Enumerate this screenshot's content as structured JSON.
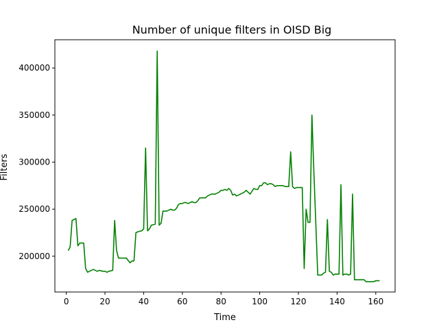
{
  "chart_data": {
    "type": "line",
    "title": "Number of unique filters in OISD Big",
    "xlabel": "Time",
    "ylabel": "Filters",
    "xlim": [
      -5.9,
      170
    ],
    "ylim": [
      162000,
      430000
    ],
    "xticks": [
      0,
      20,
      40,
      60,
      80,
      100,
      120,
      140,
      160
    ],
    "xtick_labels": [
      "0",
      "20",
      "40",
      "60",
      "80",
      "100",
      "120",
      "140",
      "160"
    ],
    "yticks": [
      200000,
      250000,
      300000,
      350000,
      400000
    ],
    "ytick_labels": [
      "200000",
      "250000",
      "300000",
      "350000",
      "400000"
    ],
    "grid": false,
    "series": [
      {
        "color": "#008000",
        "x": [
          1,
          2,
          3,
          5,
          6,
          7,
          9,
          10,
          11,
          13,
          14,
          15,
          16,
          17,
          19,
          20,
          21,
          22,
          24,
          25,
          26,
          27,
          30,
          31,
          33,
          34,
          35,
          36,
          37,
          39,
          40,
          41,
          42,
          43,
          44,
          46,
          47,
          48,
          49,
          50,
          51,
          52,
          53,
          54,
          55,
          56,
          57,
          58,
          59,
          60,
          61,
          62,
          63,
          64,
          65,
          66,
          67,
          68,
          69,
          70,
          71,
          72,
          73,
          74,
          75,
          76,
          77,
          78,
          79,
          80,
          81,
          82,
          83,
          84,
          85,
          86,
          87,
          88,
          89,
          90,
          91,
          92,
          93,
          94,
          95,
          96,
          97,
          98,
          99,
          100,
          101,
          102,
          103,
          104,
          105,
          106,
          107,
          108,
          109,
          110,
          111,
          112,
          113,
          114,
          115,
          116,
          117,
          118,
          119,
          120,
          121,
          122,
          123,
          124,
          125,
          126,
          127,
          128,
          130,
          131,
          132,
          133,
          134,
          135,
          136,
          137,
          138,
          139,
          140,
          141,
          142,
          143,
          144,
          145,
          146,
          147,
          148,
          149,
          150,
          151,
          152,
          153,
          154,
          155,
          156,
          157,
          158,
          159,
          160,
          161,
          162
        ],
        "y": [
          206000,
          210000,
          238000,
          240000,
          211000,
          214000,
          214000,
          187000,
          183000,
          185000,
          186000,
          185000,
          184000,
          185000,
          184000,
          184000,
          183000,
          184000,
          185000,
          238000,
          206000,
          198000,
          198000,
          198000,
          193000,
          195000,
          195000,
          225000,
          226000,
          227000,
          229000,
          315000,
          227000,
          229000,
          233000,
          234000,
          418000,
          233000,
          235000,
          248000,
          248000,
          248000,
          249000,
          250000,
          249000,
          249000,
          251000,
          255000,
          256000,
          256000,
          257000,
          257000,
          256000,
          257000,
          258000,
          257000,
          257000,
          259000,
          262000,
          262000,
          262000,
          262000,
          264000,
          265000,
          266000,
          266000,
          266000,
          267000,
          268000,
          270000,
          270000,
          271000,
          270000,
          272000,
          270000,
          265000,
          266000,
          264000,
          265000,
          266000,
          267000,
          268000,
          270000,
          268000,
          266000,
          269000,
          272000,
          271000,
          271000,
          275000,
          275000,
          278000,
          278000,
          276000,
          277000,
          277000,
          276000,
          274000,
          275000,
          275000,
          275000,
          275000,
          274000,
          274000,
          274000,
          311000,
          274000,
          272000,
          273000,
          273000,
          273000,
          273000,
          187000,
          250000,
          236000,
          236000,
          350000,
          290000,
          180000,
          180000,
          180000,
          182000,
          183000,
          239000,
          184000,
          183000,
          180000,
          181000,
          181000,
          181000,
          276000,
          180000,
          181000,
          181000,
          180000,
          181000,
          266000,
          175000,
          175000,
          175000,
          175000,
          175000,
          175000,
          173000,
          173000,
          173000,
          173000,
          173000,
          174000,
          174000,
          174000
        ]
      }
    ]
  }
}
